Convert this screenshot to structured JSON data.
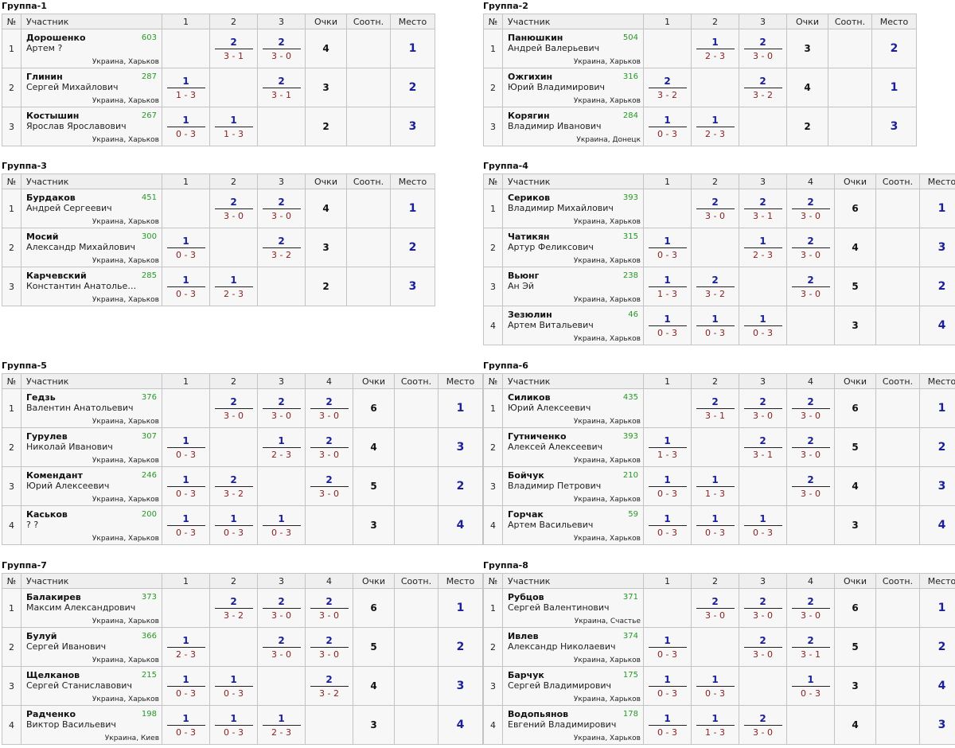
{
  "headers": {
    "num": "№",
    "participant": "Участник",
    "points": "Очки",
    "ratio": "Соотн.",
    "place": "Место"
  },
  "groups": [
    {
      "title": "Группа-1",
      "rounds": [
        "1",
        "2",
        "3"
      ],
      "rows": [
        {
          "num": "1",
          "surname": "Дорошенко",
          "name": "Артем ?",
          "rating": "603",
          "location": "Украина, Харьков",
          "results": [
            null,
            {
              "pts": "2",
              "score": "3 - 1"
            },
            {
              "pts": "2",
              "score": "3 - 0"
            }
          ],
          "points": "4",
          "ratio": "",
          "place": "1"
        },
        {
          "num": "2",
          "surname": "Глинин",
          "name": "Сергей Михайлович",
          "rating": "287",
          "location": "Украина, Харьков",
          "results": [
            {
              "pts": "1",
              "score": "1 - 3"
            },
            null,
            {
              "pts": "2",
              "score": "3 - 1"
            }
          ],
          "points": "3",
          "ratio": "",
          "place": "2"
        },
        {
          "num": "3",
          "surname": "Костышин",
          "name": "Ярослав Ярославович",
          "rating": "267",
          "location": "Украина, Харьков",
          "results": [
            {
              "pts": "1",
              "score": "0 - 3"
            },
            {
              "pts": "1",
              "score": "1 - 3"
            },
            null
          ],
          "points": "2",
          "ratio": "",
          "place": "3"
        }
      ]
    },
    {
      "title": "Группа-2",
      "rounds": [
        "1",
        "2",
        "3"
      ],
      "rows": [
        {
          "num": "1",
          "surname": "Панюшкин",
          "name": "Андрей Валерьевич",
          "rating": "504",
          "location": "Украина, Харьков",
          "results": [
            null,
            {
              "pts": "1",
              "score": "2 - 3"
            },
            {
              "pts": "2",
              "score": "3 - 0"
            }
          ],
          "points": "3",
          "ratio": "",
          "place": "2"
        },
        {
          "num": "2",
          "surname": "Ожгихин",
          "name": "Юрий Владимирович",
          "rating": "316",
          "location": "Украина, Харьков",
          "results": [
            {
              "pts": "2",
              "score": "3 - 2"
            },
            null,
            {
              "pts": "2",
              "score": "3 - 2"
            }
          ],
          "points": "4",
          "ratio": "",
          "place": "1"
        },
        {
          "num": "3",
          "surname": "Корягин",
          "name": "Владимир Иванович",
          "rating": "284",
          "location": "Украина, Донецк",
          "results": [
            {
              "pts": "1",
              "score": "0 - 3"
            },
            {
              "pts": "1",
              "score": "2 - 3"
            },
            null
          ],
          "points": "2",
          "ratio": "",
          "place": "3"
        }
      ]
    },
    {
      "title": "Группа-3",
      "rounds": [
        "1",
        "2",
        "3"
      ],
      "rows": [
        {
          "num": "1",
          "surname": "Бурдаков",
          "name": "Андрей Сергеевич",
          "rating": "451",
          "location": "Украина, Харьков",
          "results": [
            null,
            {
              "pts": "2",
              "score": "3 - 0"
            },
            {
              "pts": "2",
              "score": "3 - 0"
            }
          ],
          "points": "4",
          "ratio": "",
          "place": "1"
        },
        {
          "num": "2",
          "surname": "Мосий",
          "name": "Александр Михайлович",
          "rating": "300",
          "location": "Украина, Харьков",
          "results": [
            {
              "pts": "1",
              "score": "0 - 3"
            },
            null,
            {
              "pts": "2",
              "score": "3 - 2"
            }
          ],
          "points": "3",
          "ratio": "",
          "place": "2"
        },
        {
          "num": "3",
          "surname": "Карчевский",
          "name": "Константин Анатольев...",
          "rating": "285",
          "location": "Украина, Харьков",
          "results": [
            {
              "pts": "1",
              "score": "0 - 3"
            },
            {
              "pts": "1",
              "score": "2 - 3"
            },
            null
          ],
          "points": "2",
          "ratio": "",
          "place": "3"
        }
      ]
    },
    {
      "title": "Группа-4",
      "rounds": [
        "1",
        "2",
        "3",
        "4"
      ],
      "rows": [
        {
          "num": "1",
          "surname": "Сериков",
          "name": "Владимир Михайлович",
          "rating": "393",
          "location": "Украина, Харьков",
          "results": [
            null,
            {
              "pts": "2",
              "score": "3 - 0"
            },
            {
              "pts": "2",
              "score": "3 - 1"
            },
            {
              "pts": "2",
              "score": "3 - 0"
            }
          ],
          "points": "6",
          "ratio": "",
          "place": "1"
        },
        {
          "num": "2",
          "surname": "Чатикян",
          "name": "Артур Феликсович",
          "rating": "315",
          "location": "Украина, Харьков",
          "results": [
            {
              "pts": "1",
              "score": "0 - 3"
            },
            null,
            {
              "pts": "1",
              "score": "2 - 3"
            },
            {
              "pts": "2",
              "score": "3 - 0"
            }
          ],
          "points": "4",
          "ratio": "",
          "place": "3"
        },
        {
          "num": "3",
          "surname": "Вьюнг",
          "name": "Ан Эй",
          "rating": "238",
          "location": "Украина, Харьков",
          "results": [
            {
              "pts": "1",
              "score": "1 - 3"
            },
            {
              "pts": "2",
              "score": "3 - 2"
            },
            null,
            {
              "pts": "2",
              "score": "3 - 0"
            }
          ],
          "points": "5",
          "ratio": "",
          "place": "2"
        },
        {
          "num": "4",
          "surname": "Зезюлин",
          "name": "Артем Витальевич",
          "rating": "46",
          "location": "Украина, Харьков",
          "results": [
            {
              "pts": "1",
              "score": "0 - 3"
            },
            {
              "pts": "1",
              "score": "0 - 3"
            },
            {
              "pts": "1",
              "score": "0 - 3"
            },
            null
          ],
          "points": "3",
          "ratio": "",
          "place": "4"
        }
      ]
    },
    {
      "title": "Группа-5",
      "rounds": [
        "1",
        "2",
        "3",
        "4"
      ],
      "rows": [
        {
          "num": "1",
          "surname": "Гедзь",
          "name": "Валентин Анатольевич",
          "rating": "376",
          "location": "Украина, Харьков",
          "results": [
            null,
            {
              "pts": "2",
              "score": "3 - 0"
            },
            {
              "pts": "2",
              "score": "3 - 0"
            },
            {
              "pts": "2",
              "score": "3 - 0"
            }
          ],
          "points": "6",
          "ratio": "",
          "place": "1"
        },
        {
          "num": "2",
          "surname": "Гурулев",
          "name": "Николай Иванович",
          "rating": "307",
          "location": "Украина, Харьков",
          "results": [
            {
              "pts": "1",
              "score": "0 - 3"
            },
            null,
            {
              "pts": "1",
              "score": "2 - 3"
            },
            {
              "pts": "2",
              "score": "3 - 0"
            }
          ],
          "points": "4",
          "ratio": "",
          "place": "3"
        },
        {
          "num": "3",
          "surname": "Комендант",
          "name": "Юрий Алексеевич",
          "rating": "246",
          "location": "Украина, Харьков",
          "results": [
            {
              "pts": "1",
              "score": "0 - 3"
            },
            {
              "pts": "2",
              "score": "3 - 2"
            },
            null,
            {
              "pts": "2",
              "score": "3 - 0"
            }
          ],
          "points": "5",
          "ratio": "",
          "place": "2"
        },
        {
          "num": "4",
          "surname": "Каськов",
          "name": "? ?",
          "rating": "200",
          "location": "Украина, Харьков",
          "results": [
            {
              "pts": "1",
              "score": "0 - 3"
            },
            {
              "pts": "1",
              "score": "0 - 3"
            },
            {
              "pts": "1",
              "score": "0 - 3"
            },
            null
          ],
          "points": "3",
          "ratio": "",
          "place": "4"
        }
      ]
    },
    {
      "title": "Группа-6",
      "rounds": [
        "1",
        "2",
        "3",
        "4"
      ],
      "rows": [
        {
          "num": "1",
          "surname": "Силиков",
          "name": "Юрий Алексеевич",
          "rating": "435",
          "location": "Украина, Харьков",
          "results": [
            null,
            {
              "pts": "2",
              "score": "3 - 1"
            },
            {
              "pts": "2",
              "score": "3 - 0"
            },
            {
              "pts": "2",
              "score": "3 - 0"
            }
          ],
          "points": "6",
          "ratio": "",
          "place": "1"
        },
        {
          "num": "2",
          "surname": "Гутниченко",
          "name": "Алексей Алексеевич",
          "rating": "393",
          "location": "Украина, Харьков",
          "results": [
            {
              "pts": "1",
              "score": "1 - 3"
            },
            null,
            {
              "pts": "2",
              "score": "3 - 1"
            },
            {
              "pts": "2",
              "score": "3 - 0"
            }
          ],
          "points": "5",
          "ratio": "",
          "place": "2"
        },
        {
          "num": "3",
          "surname": "Бойчук",
          "name": "Владимир Петрович",
          "rating": "210",
          "location": "Украина, Харьков",
          "results": [
            {
              "pts": "1",
              "score": "0 - 3"
            },
            {
              "pts": "1",
              "score": "1 - 3"
            },
            null,
            {
              "pts": "2",
              "score": "3 - 0"
            }
          ],
          "points": "4",
          "ratio": "",
          "place": "3"
        },
        {
          "num": "4",
          "surname": "Горчак",
          "name": "Артем Васильевич",
          "rating": "59",
          "location": "Украина, Харьков",
          "results": [
            {
              "pts": "1",
              "score": "0 - 3"
            },
            {
              "pts": "1",
              "score": "0 - 3"
            },
            {
              "pts": "1",
              "score": "0 - 3"
            },
            null
          ],
          "points": "3",
          "ratio": "",
          "place": "4"
        }
      ]
    },
    {
      "title": "Группа-7",
      "rounds": [
        "1",
        "2",
        "3",
        "4"
      ],
      "rows": [
        {
          "num": "1",
          "surname": "Балакирев",
          "name": "Максим Александрович",
          "rating": "373",
          "location": "Украина, Харьков",
          "results": [
            null,
            {
              "pts": "2",
              "score": "3 - 2"
            },
            {
              "pts": "2",
              "score": "3 - 0"
            },
            {
              "pts": "2",
              "score": "3 - 0"
            }
          ],
          "points": "6",
          "ratio": "",
          "place": "1"
        },
        {
          "num": "2",
          "surname": "Булуй",
          "name": "Сергей Иванович",
          "rating": "366",
          "location": "Украина, Харьков",
          "results": [
            {
              "pts": "1",
              "score": "2 - 3"
            },
            null,
            {
              "pts": "2",
              "score": "3 - 0"
            },
            {
              "pts": "2",
              "score": "3 - 0"
            }
          ],
          "points": "5",
          "ratio": "",
          "place": "2"
        },
        {
          "num": "3",
          "surname": "Щелканов",
          "name": "Сергей Станиславович",
          "rating": "215",
          "location": "Украина, Харьков",
          "results": [
            {
              "pts": "1",
              "score": "0 - 3"
            },
            {
              "pts": "1",
              "score": "0 - 3"
            },
            null,
            {
              "pts": "2",
              "score": "3 - 2"
            }
          ],
          "points": "4",
          "ratio": "",
          "place": "3"
        },
        {
          "num": "4",
          "surname": "Радченко",
          "name": "Виктор Васильевич",
          "rating": "198",
          "location": "Украина, Киев",
          "results": [
            {
              "pts": "1",
              "score": "0 - 3"
            },
            {
              "pts": "1",
              "score": "0 - 3"
            },
            {
              "pts": "1",
              "score": "2 - 3"
            },
            null
          ],
          "points": "3",
          "ratio": "",
          "place": "4"
        }
      ]
    },
    {
      "title": "Группа-8",
      "rounds": [
        "1",
        "2",
        "3",
        "4"
      ],
      "rows": [
        {
          "num": "1",
          "surname": "Рубцов",
          "name": "Сергей Валентинович",
          "rating": "371",
          "location": "Украина, Счастье",
          "results": [
            null,
            {
              "pts": "2",
              "score": "3 - 0"
            },
            {
              "pts": "2",
              "score": "3 - 0"
            },
            {
              "pts": "2",
              "score": "3 - 0"
            }
          ],
          "points": "6",
          "ratio": "",
          "place": "1"
        },
        {
          "num": "2",
          "surname": "Ивлев",
          "name": "Александр Николаевич",
          "rating": "374",
          "location": "Украина, Харьков",
          "results": [
            {
              "pts": "1",
              "score": "0 - 3"
            },
            null,
            {
              "pts": "2",
              "score": "3 - 0"
            },
            {
              "pts": "2",
              "score": "3 - 1"
            }
          ],
          "points": "5",
          "ratio": "",
          "place": "2"
        },
        {
          "num": "3",
          "surname": "Барчук",
          "name": "Сергей Владимирович",
          "rating": "175",
          "location": "Украина, Харьков",
          "results": [
            {
              "pts": "1",
              "score": "0 - 3"
            },
            {
              "pts": "1",
              "score": "0 - 3"
            },
            null,
            {
              "pts": "1",
              "score": "0 - 3"
            }
          ],
          "points": "3",
          "ratio": "",
          "place": "4"
        },
        {
          "num": "4",
          "surname": "Водопьянов",
          "name": "Евгений Владимирович",
          "rating": "178",
          "location": "Украина, Харьков",
          "results": [
            {
              "pts": "1",
              "score": "0 - 3"
            },
            {
              "pts": "1",
              "score": "1 - 3"
            },
            {
              "pts": "2",
              "score": "3 - 0"
            },
            null
          ],
          "points": "4",
          "ratio": "",
          "place": "3"
        }
      ]
    }
  ]
}
